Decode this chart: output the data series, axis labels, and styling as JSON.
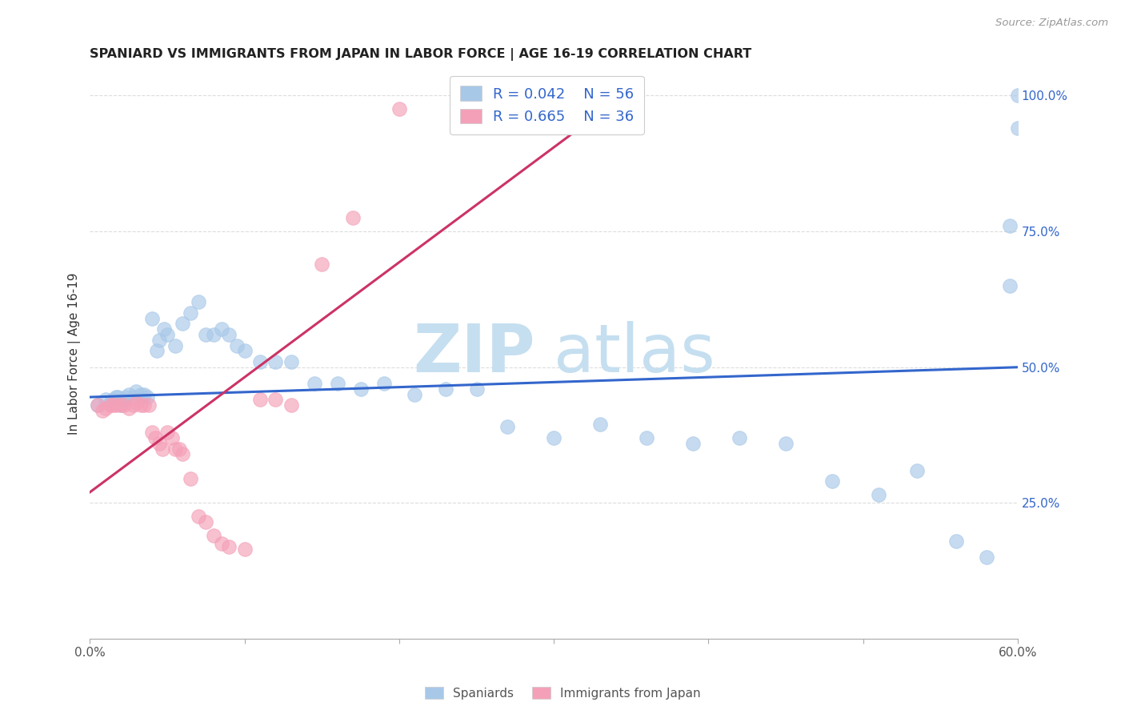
{
  "title": "SPANIARD VS IMMIGRANTS FROM JAPAN IN LABOR FORCE | AGE 16-19 CORRELATION CHART",
  "source": "Source: ZipAtlas.com",
  "ylabel": "In Labor Force | Age 16-19",
  "xlim": [
    0.0,
    0.6
  ],
  "ylim": [
    0.0,
    1.05
  ],
  "xticks": [
    0.0,
    0.1,
    0.2,
    0.3,
    0.4,
    0.5,
    0.6
  ],
  "xticklabels": [
    "0.0%",
    "",
    "",
    "",
    "",
    "",
    "60.0%"
  ],
  "yticks_right": [
    0.0,
    0.25,
    0.5,
    0.75,
    1.0
  ],
  "yticklabels_right": [
    "",
    "25.0%",
    "50.0%",
    "75.0%",
    "100.0%"
  ],
  "blue_color": "#a8c8e8",
  "pink_color": "#f4a0b8",
  "blue_line_color": "#3366cc",
  "pink_line_color": "#cc3366",
  "legend_R_blue": "R = 0.042",
  "legend_N_blue": "N = 56",
  "legend_R_pink": "R = 0.665",
  "legend_N_pink": "N = 36",
  "watermark_zip": "ZIP",
  "watermark_atlas": "atlas",
  "blue_scatter_x": [
    0.005,
    0.01,
    0.013,
    0.015,
    0.017,
    0.018,
    0.02,
    0.022,
    0.023,
    0.025,
    0.028,
    0.03,
    0.033,
    0.035,
    0.037,
    0.04,
    0.043,
    0.045,
    0.048,
    0.05,
    0.055,
    0.06,
    0.065,
    0.07,
    0.075,
    0.08,
    0.085,
    0.09,
    0.095,
    0.1,
    0.11,
    0.12,
    0.13,
    0.145,
    0.16,
    0.175,
    0.19,
    0.21,
    0.23,
    0.25,
    0.27,
    0.3,
    0.33,
    0.36,
    0.39,
    0.42,
    0.45,
    0.48,
    0.51,
    0.535,
    0.56,
    0.58,
    0.595,
    0.6,
    0.6,
    0.595
  ],
  "blue_scatter_y": [
    0.43,
    0.44,
    0.435,
    0.44,
    0.445,
    0.445,
    0.43,
    0.44,
    0.445,
    0.45,
    0.445,
    0.455,
    0.45,
    0.45,
    0.445,
    0.59,
    0.53,
    0.55,
    0.57,
    0.56,
    0.54,
    0.58,
    0.6,
    0.62,
    0.56,
    0.56,
    0.57,
    0.56,
    0.54,
    0.53,
    0.51,
    0.51,
    0.51,
    0.47,
    0.47,
    0.46,
    0.47,
    0.45,
    0.46,
    0.46,
    0.39,
    0.37,
    0.395,
    0.37,
    0.36,
    0.37,
    0.36,
    0.29,
    0.265,
    0.31,
    0.18,
    0.15,
    0.76,
    1.0,
    0.94,
    0.65
  ],
  "pink_scatter_x": [
    0.005,
    0.008,
    0.01,
    0.013,
    0.015,
    0.017,
    0.02,
    0.022,
    0.025,
    0.028,
    0.03,
    0.033,
    0.035,
    0.038,
    0.04,
    0.042,
    0.045,
    0.047,
    0.05,
    0.053,
    0.055,
    0.058,
    0.06,
    0.065,
    0.07,
    0.075,
    0.08,
    0.085,
    0.09,
    0.1,
    0.11,
    0.12,
    0.13,
    0.15,
    0.17,
    0.2
  ],
  "pink_scatter_y": [
    0.43,
    0.42,
    0.425,
    0.43,
    0.43,
    0.43,
    0.43,
    0.43,
    0.425,
    0.43,
    0.435,
    0.43,
    0.43,
    0.43,
    0.38,
    0.37,
    0.36,
    0.35,
    0.38,
    0.37,
    0.35,
    0.35,
    0.34,
    0.295,
    0.225,
    0.215,
    0.19,
    0.175,
    0.17,
    0.165,
    0.44,
    0.44,
    0.43,
    0.69,
    0.775,
    0.975
  ],
  "blue_trend_x": [
    0.0,
    0.6
  ],
  "blue_trend_y": [
    0.445,
    0.5
  ],
  "pink_trend_x": [
    0.0,
    0.345
  ],
  "pink_trend_y": [
    0.27,
    1.0
  ],
  "grid_color": "#dddddd",
  "bottom_legend_label1": "Spaniards",
  "bottom_legend_label2": "Immigrants from Japan"
}
